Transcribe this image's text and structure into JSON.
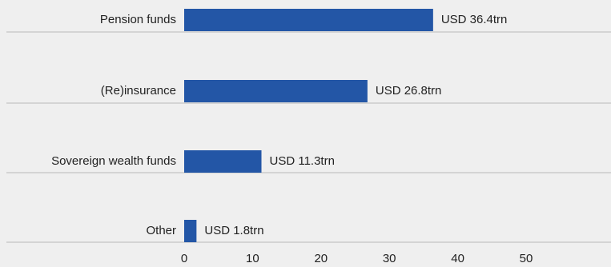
{
  "chart_data": {
    "type": "bar",
    "orientation": "horizontal",
    "title": "",
    "xlabel": "",
    "ylabel": "",
    "categories": [
      "Pension funds",
      "(Re)insurance",
      "Sovereign wealth funds",
      "Other"
    ],
    "values": [
      36.4,
      26.8,
      11.3,
      1.8
    ],
    "data_labels": [
      "USD 36.4trn",
      "USD 26.8trn",
      "USD 11.3trn",
      "USD 1.8trn"
    ],
    "xlim": [
      0,
      50
    ],
    "x_ticks": [
      0,
      10,
      20,
      30,
      40,
      50
    ],
    "x_tick_labels": [
      "0",
      "10",
      "20",
      "30",
      "40",
      "50"
    ],
    "grid": false,
    "legend": "none",
    "colors": {
      "bar": "#2356a6",
      "background": "#efefef",
      "separator": "#b9b9b9",
      "text": "#222222"
    }
  }
}
